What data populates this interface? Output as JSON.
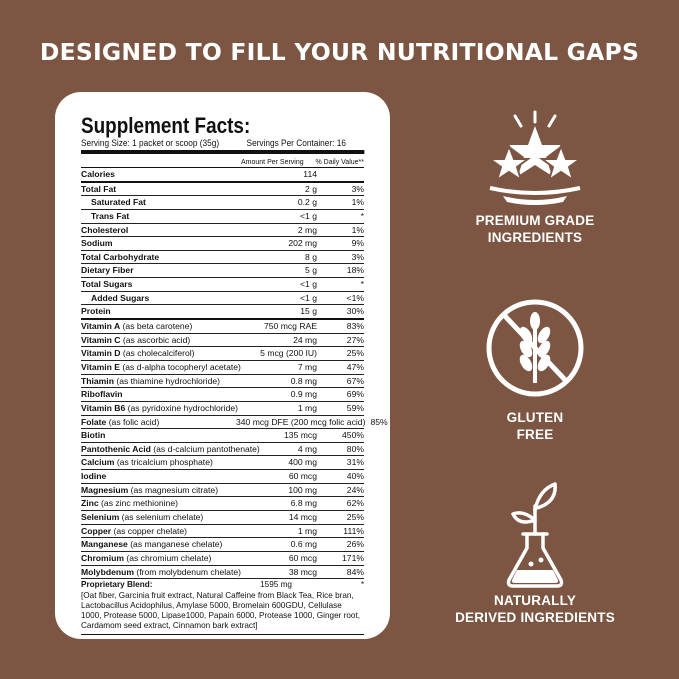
{
  "headline": "DESIGNED TO FILL YOUR NUTRITIONAL GAPS",
  "facts": {
    "title": "Supplement Facts:",
    "serving_size": "Serving Size: 1 packet or scoop (35g)",
    "servings_per_container": "Servings Per Container: 16",
    "col_amount": "Amount Per Serving",
    "col_dv": "% Daily Value**",
    "rows": [
      {
        "name": "Calories",
        "detail": "",
        "amount": "114",
        "dv": ""
      },
      {
        "name": "Total Fat",
        "detail": "",
        "amount": "2 g",
        "dv": "3%"
      },
      {
        "name": "Saturated Fat",
        "detail": "",
        "amount": "0.2 g",
        "dv": "1%"
      },
      {
        "name": "Trans Fat",
        "detail": "",
        "amount": "<1 g",
        "dv": "*"
      },
      {
        "name": "Cholesterol",
        "detail": "",
        "amount": "2 mg",
        "dv": "1%"
      },
      {
        "name": "Sodium",
        "detail": "",
        "amount": "202 mg",
        "dv": "9%"
      },
      {
        "name": "Total Carbohydrate",
        "detail": "",
        "amount": "8 g",
        "dv": "3%"
      },
      {
        "name": "Dietary Fiber",
        "detail": "",
        "amount": "5 g",
        "dv": "18%"
      },
      {
        "name": "Total Sugars",
        "detail": "",
        "amount": "<1 g",
        "dv": "*"
      },
      {
        "name": "Added Sugars",
        "detail": "",
        "amount": "<1 g",
        "dv": "<1%"
      },
      {
        "name": "Protein",
        "detail": "",
        "amount": "15 g",
        "dv": "30%"
      },
      {
        "name": "Vitamin A",
        "detail": " (as beta carotene)",
        "amount": "750 mcg RAE",
        "dv": "83%"
      },
      {
        "name": "Vitamin C",
        "detail": " (as ascorbic acid)",
        "amount": "24 mg",
        "dv": "27%"
      },
      {
        "name": "Vitamin D",
        "detail": " (as cholecalciferol)",
        "amount": "5 mcg (200 IU)",
        "dv": "25%"
      },
      {
        "name": "Vitamin E",
        "detail": " (as d-alpha tocopheryl acetate)",
        "amount": "7 mg",
        "dv": "47%"
      },
      {
        "name": "Thiamin",
        "detail": " (as thiamine hydrochloride)",
        "amount": "0.8 mg",
        "dv": "67%"
      },
      {
        "name": "Riboflavin",
        "detail": "",
        "amount": "0.9 mg",
        "dv": "69%"
      },
      {
        "name": "Vitamin B6",
        "detail": " (as pyridoxine hydrochloride)",
        "amount": "1 mg",
        "dv": "59%"
      },
      {
        "name": "Folate",
        "detail": " (as folic acid)",
        "amount": "340 mcg DFE (200 mcg folic acid)",
        "dv": "85%"
      },
      {
        "name": "Biotin",
        "detail": "",
        "amount": "135 mcg",
        "dv": "450%"
      },
      {
        "name": "Pantothenic Acid",
        "detail": " (as d-calcium pantothenate)",
        "amount": "4 mg",
        "dv": "80%"
      },
      {
        "name": "Calcium",
        "detail": " (as tricalcium phosphate)",
        "amount": "400 mg",
        "dv": "31%"
      },
      {
        "name": "Iodine",
        "detail": "",
        "amount": "60 mcg",
        "dv": "40%"
      },
      {
        "name": "Magnesium",
        "detail": " (as magnesium citrate)",
        "amount": "100 mg",
        "dv": "24%"
      },
      {
        "name": "Zinc",
        "detail": " (as zinc methionine)",
        "amount": "6.8 mg",
        "dv": "62%"
      },
      {
        "name": "Selenium",
        "detail": " (as selenium chelate)",
        "amount": "14 mcg",
        "dv": "25%"
      },
      {
        "name": "Copper",
        "detail": " (as copper chelate)",
        "amount": "1 mg",
        "dv": "111%"
      },
      {
        "name": "Manganese",
        "detail": " (as manganese chelate)",
        "amount": "0.6 mg",
        "dv": "26%"
      },
      {
        "name": "Chromium",
        "detail": " (as chromium chelate)",
        "amount": "60 mcg",
        "dv": "171%"
      },
      {
        "name": "Molybdenum",
        "detail": " (from molybdenum chelate)",
        "amount": "38 mcg",
        "dv": "84%"
      }
    ],
    "blend": {
      "name": "Proprietary Blend:",
      "amount": "1595 mg",
      "dv": "*",
      "text": "[Oat fiber, Garcinia fruit extract, Natural Caffeine from Black Tea, Rice bran, Lactobacillus Acidophilus, Amylase 5000, Bromelain 600GDU, Cellulase 1000, Protease 5000, Lipase1000, Papain 6000, Protease 1000, Ginger root, Cardamom seed extract, Cinnamon bark extract]"
    }
  },
  "features": [
    {
      "line1": "PREMIUM GRADE",
      "line2": "INGREDIENTS",
      "icon": "stars-plate-icon"
    },
    {
      "line1": "GLUTEN",
      "line2": "FREE",
      "icon": "no-wheat-icon"
    },
    {
      "line1": "NATURALLY",
      "line2": "DERIVED INGREDIENTS",
      "icon": "flask-plant-icon"
    }
  ],
  "colors": {
    "background": "#7c5643",
    "card": "#ffffff",
    "text": "#111111"
  }
}
